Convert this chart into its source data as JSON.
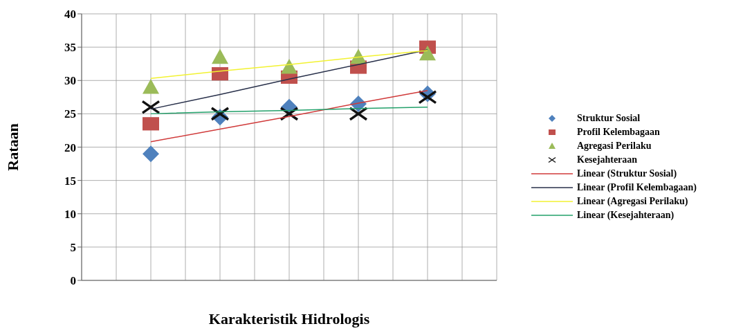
{
  "chart_data": {
    "type": "scatter",
    "xlabel": "Karakteristik Hidrologis",
    "ylabel": "Rataan",
    "categories": [
      null,
      null,
      null,
      null,
      null
    ],
    "ylim": [
      0,
      40
    ],
    "yticks": [
      0,
      5,
      10,
      15,
      20,
      25,
      30,
      35,
      40
    ],
    "grid": true,
    "legend": "right",
    "series": [
      {
        "name": "Struktur Sosial",
        "color": "#4f81bd",
        "marker": "diamond",
        "values": [
          19,
          24.5,
          26,
          26.5,
          28
        ]
      },
      {
        "name": "Profil Kelembagaan",
        "color": "#c0504d",
        "marker": "square",
        "values": [
          23.5,
          31,
          30.5,
          32,
          35
        ]
      },
      {
        "name": "Agregasi Perilaku",
        "color": "#9bbb59",
        "marker": "triangle",
        "values": [
          29,
          33.5,
          32,
          33.5,
          34
        ]
      },
      {
        "name": "Kesejahteraan",
        "color": "#111111",
        "marker": "cross",
        "values": [
          26,
          25,
          25,
          25,
          27.5
        ]
      },
      {
        "name": "Linear (Struktur Sosial)",
        "type": "line",
        "marker": "none",
        "color": "#d03a3a",
        "values": [
          20.8,
          22.7,
          24.6,
          26.6,
          28.5
        ]
      },
      {
        "name": "Linear (Profil Kelembagaan)",
        "type": "line",
        "marker": "none",
        "color": "#28304a",
        "values": [
          25.7,
          27.9,
          30.2,
          32.4,
          34.6
        ]
      },
      {
        "name": "Linear (Agregasi Perilaku)",
        "type": "line",
        "marker": "none",
        "color": "#f2f230",
        "values": [
          30.3,
          31.4,
          32.4,
          33.5,
          34.5
        ]
      },
      {
        "name": "Linear (Kesejahteraan)",
        "type": "line",
        "marker": "none",
        "color": "#22a06a",
        "values": [
          25,
          25.3,
          25.5,
          25.8,
          26
        ]
      }
    ]
  }
}
